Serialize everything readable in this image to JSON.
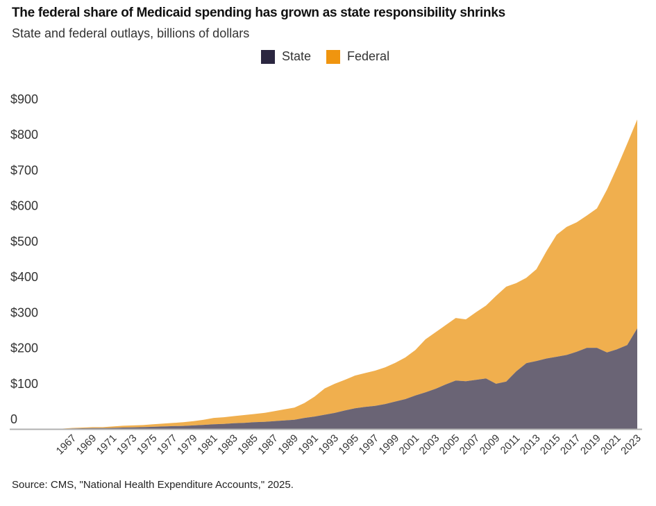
{
  "title": "The federal share of Medicaid spending has grown as state responsibility shrinks",
  "subtitle": "State and federal outlays, billions of dollars",
  "source": "Source: CMS, \"National Health Expenditure Accounts,\" 2025.",
  "colors": {
    "state": "#6a6475",
    "federal": "#f0af4e",
    "state_legend": "#2b2640",
    "federal_legend": "#f0950f"
  },
  "chart_data": {
    "type": "area",
    "stacked": true,
    "title": "The federal share of Medicaid spending has grown as state responsibility shrinks",
    "ylabel": "Billions of dollars",
    "xlabel": "",
    "ylim": [
      0,
      900
    ],
    "yticks": [
      0,
      100,
      200,
      300,
      400,
      500,
      600,
      700,
      800,
      900
    ],
    "ytick_labels": [
      "0",
      "$100",
      "$200",
      "$300",
      "$400",
      "$500",
      "$600",
      "$700",
      "$800",
      "$900"
    ],
    "xtick_labels": [
      "1967",
      "1969",
      "1971",
      "1973",
      "1975",
      "1977",
      "1979",
      "1981",
      "1983",
      "1985",
      "1987",
      "1989",
      "1991",
      "1993",
      "1995",
      "1997",
      "1999",
      "2001",
      "2003",
      "2005",
      "2007",
      "2009",
      "2011",
      "2013",
      "2015",
      "2017",
      "2019",
      "2021",
      "2023"
    ],
    "legend": [
      "State",
      "Federal"
    ],
    "legend_position": "top-center",
    "grid": false,
    "x": [
      1966,
      1967,
      1968,
      1969,
      1970,
      1971,
      1972,
      1973,
      1974,
      1975,
      1976,
      1977,
      1978,
      1979,
      1980,
      1981,
      1982,
      1983,
      1984,
      1985,
      1986,
      1987,
      1988,
      1989,
      1990,
      1991,
      1992,
      1993,
      1994,
      1995,
      1996,
      1997,
      1998,
      1999,
      2000,
      2001,
      2002,
      2003,
      2004,
      2005,
      2006,
      2007,
      2008,
      2009,
      2010,
      2011,
      2012,
      2013,
      2014,
      2015,
      2016,
      2017,
      2018,
      2019,
      2020,
      2021,
      2022,
      2023
    ],
    "series": [
      {
        "name": "State",
        "values": [
          0.5,
          1.5,
          2,
          2.5,
          2.5,
          3,
          4,
          4.5,
          5,
          6,
          7,
          8,
          8.5,
          10,
          11.5,
          13,
          14,
          16,
          17,
          19,
          20,
          22,
          24,
          26,
          31,
          35,
          40,
          45,
          52,
          58,
          62,
          65,
          70,
          77,
          84,
          94,
          103,
          113,
          125,
          136,
          134,
          138,
          142,
          127,
          133,
          162,
          185,
          191,
          198,
          203,
          208,
          217,
          228,
          228,
          215,
          224,
          236,
          283
        ]
      },
      {
        "name": "Federal",
        "values": [
          0.5,
          1.5,
          2,
          2.5,
          2.5,
          4,
          5,
          5.5,
          6,
          7,
          8,
          9,
          10.5,
          12,
          14.5,
          18,
          19,
          20,
          22,
          23,
          25,
          28,
          31,
          34,
          42,
          56,
          74,
          82,
          86,
          92,
          95,
          99,
          103,
          109,
          117,
          128,
          149,
          159,
          167,
          176,
          174,
          190,
          205,
          247,
          267,
          248,
          240,
          258,
          302,
          343,
          360,
          364,
          372,
          392,
          458,
          511,
          566,
          587
        ]
      }
    ]
  }
}
